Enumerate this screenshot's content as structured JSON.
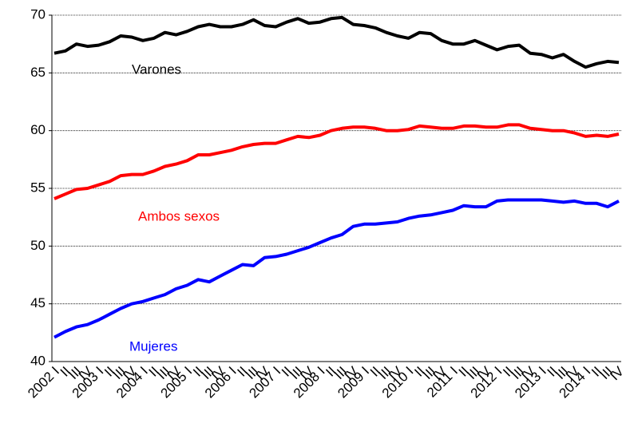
{
  "chart_data": {
    "type": "line",
    "categories": [
      "2002 I",
      "II",
      "III",
      "IV",
      "2003 I",
      "II",
      "III",
      "IV",
      "2004 I",
      "II",
      "III",
      "IV",
      "2005 I",
      "II",
      "III",
      "IV",
      "2006 I",
      "II",
      "III",
      "IV",
      "2007 I",
      "II",
      "III",
      "IV",
      "2008 I",
      "II",
      "III",
      "IV",
      "2009 I",
      "II",
      "III",
      "IV",
      "2010 I",
      "II",
      "III",
      "IV",
      "2011 I",
      "II",
      "III",
      "IV",
      "2012 I",
      "II",
      "III",
      "IV",
      "2013 I",
      "II",
      "III",
      "IV",
      "2014 I",
      "II",
      "III",
      "IV"
    ],
    "series": [
      {
        "name": "Varones",
        "color": "#000000",
        "values": [
          66.7,
          66.9,
          67.5,
          67.3,
          67.4,
          67.7,
          68.2,
          68.1,
          67.8,
          68.0,
          68.5,
          68.3,
          68.6,
          69.0,
          69.2,
          69.0,
          69.0,
          69.2,
          69.6,
          69.1,
          69.0,
          69.4,
          69.7,
          69.3,
          69.4,
          69.7,
          69.8,
          69.2,
          69.1,
          68.9,
          68.5,
          68.2,
          68.0,
          68.5,
          68.4,
          67.8,
          67.5,
          67.5,
          67.8,
          67.4,
          67.0,
          67.3,
          67.4,
          66.7,
          66.6,
          66.3,
          66.6,
          66.0,
          65.5,
          65.8,
          66.0,
          65.9
        ]
      },
      {
        "name": "Ambos sexos",
        "color": "#ff0000",
        "values": [
          54.1,
          54.5,
          54.9,
          55.0,
          55.3,
          55.6,
          56.1,
          56.2,
          56.2,
          56.5,
          56.9,
          57.1,
          57.4,
          57.9,
          57.9,
          58.1,
          58.3,
          58.6,
          58.8,
          58.9,
          58.9,
          59.2,
          59.5,
          59.4,
          59.6,
          60.0,
          60.2,
          60.3,
          60.3,
          60.2,
          60.0,
          60.0,
          60.1,
          60.4,
          60.3,
          60.2,
          60.2,
          60.4,
          60.4,
          60.3,
          60.3,
          60.5,
          60.5,
          60.2,
          60.1,
          60.0,
          60.0,
          59.8,
          59.5,
          59.6,
          59.5,
          59.7
        ]
      },
      {
        "name": "Mujeres",
        "color": "#0000ff",
        "values": [
          42.1,
          42.6,
          43.0,
          43.2,
          43.6,
          44.1,
          44.6,
          45.0,
          45.2,
          45.5,
          45.8,
          46.3,
          46.6,
          47.1,
          46.9,
          47.4,
          47.9,
          48.4,
          48.3,
          49.0,
          49.1,
          49.3,
          49.6,
          49.9,
          50.3,
          50.7,
          51.0,
          51.7,
          51.9,
          51.9,
          52.0,
          52.1,
          52.4,
          52.6,
          52.7,
          52.9,
          53.1,
          53.5,
          53.4,
          53.4,
          53.9,
          54.0,
          54.0,
          54.0,
          54.0,
          53.9,
          53.8,
          53.9,
          53.7,
          53.7,
          53.4,
          53.9
        ]
      }
    ],
    "ylim": [
      40,
      70
    ],
    "yticks": [
      40,
      45,
      50,
      55,
      60,
      65,
      70
    ],
    "grid": true
  }
}
